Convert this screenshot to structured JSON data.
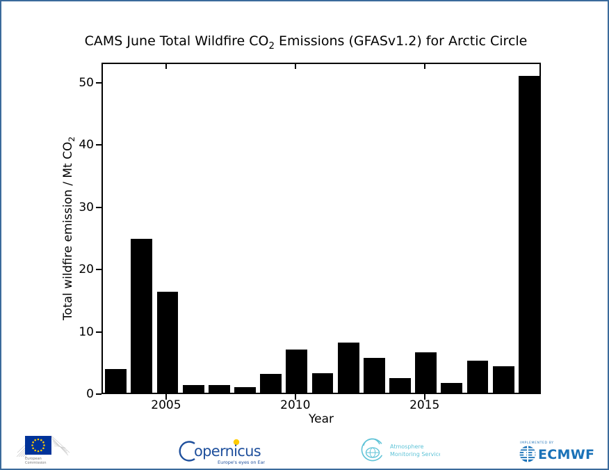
{
  "title": {
    "pre": "CAMS June Total Wildfire CO",
    "sub": "2",
    "post": " Emissions (GFASv1.2) for Arctic Circle"
  },
  "axes": {
    "ylabel_pre": "Total wildfire emission / Mt CO",
    "ylabel_sub": "2",
    "xlabel": "Year"
  },
  "chart_data": {
    "type": "bar",
    "title": "CAMS June Total Wildfire CO2 Emissions (GFASv1.2) for Arctic Circle",
    "xlabel": "Year",
    "ylabel": "Total wildfire emission / Mt CO2",
    "categories": [
      2003,
      2004,
      2005,
      2006,
      2007,
      2008,
      2009,
      2010,
      2011,
      2012,
      2013,
      2014,
      2015,
      2016,
      2017,
      2018,
      2019
    ],
    "values": [
      3.8,
      24.7,
      16.2,
      1.2,
      1.2,
      0.9,
      3.0,
      6.9,
      3.1,
      8.0,
      5.6,
      2.3,
      6.5,
      1.6,
      5.1,
      4.2,
      50.8
    ],
    "units": "Mt CO2",
    "bar_color": "#000000",
    "bar_width": 0.83,
    "xlim": [
      2002.5,
      2019.5
    ],
    "ylim": [
      0,
      53.2
    ],
    "yticks": [
      0,
      10,
      20,
      30,
      40,
      50
    ],
    "xticks": [
      2005,
      2010,
      2015
    ],
    "grid": false,
    "legend": "none"
  },
  "footer": {
    "ec": {
      "line1": "European",
      "line2": "Commission"
    },
    "copernicus": {
      "wordmark": "opernicus",
      "tagline": "Europe's eyes on Earth"
    },
    "ams": {
      "line1": "Atmosphere",
      "line2": "Monitoring Service"
    },
    "ecmwf": {
      "implemented_by": "IMPLEMENTED BY",
      "wordmark": "ECMWF"
    }
  },
  "colors": {
    "frame_border": "#3a6a9b",
    "eu_blue": "#003399",
    "eu_yellow": "#ffcc00",
    "copernicus_blue": "#1e4f9c",
    "ams_cyan": "#5fc3d7",
    "ecmwf_blue": "#1a72b8"
  }
}
